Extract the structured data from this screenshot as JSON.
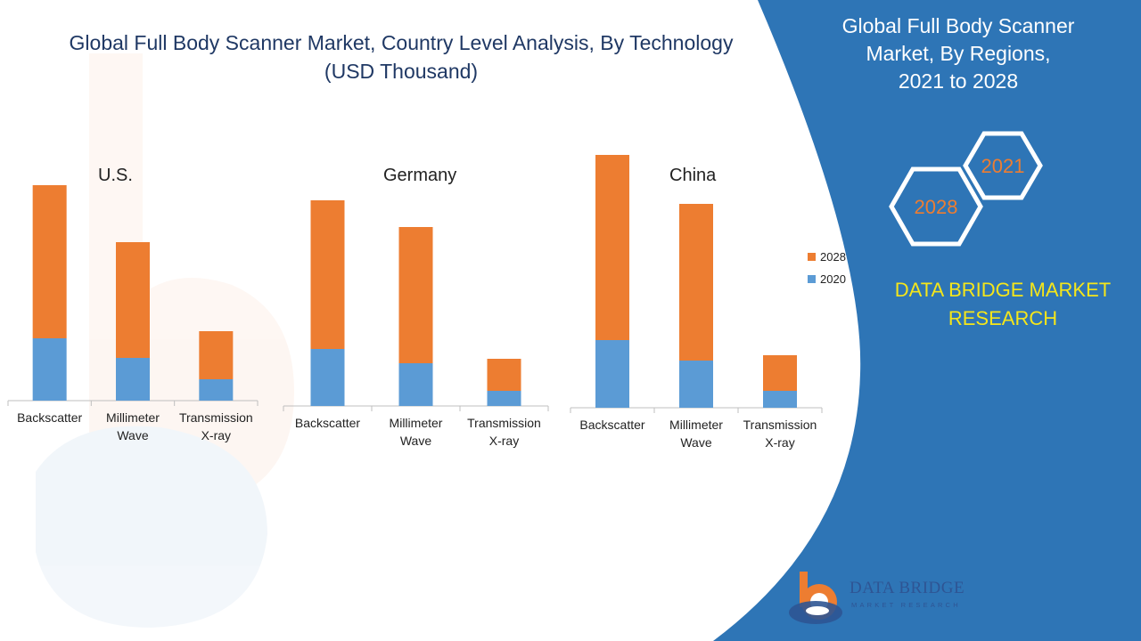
{
  "title_line1": "Global Full Body Scanner Market, Country Level Analysis, By Technology",
  "title_line2": "(USD Thousand)",
  "panel": {
    "title_line1": "Global Full Body Scanner",
    "title_line2": "Market, By Regions,",
    "title_line3": "2021 to 2028",
    "hex_year_a": "2021",
    "hex_year_b": "2028",
    "brand_line1": "DATA BRIDGE MARKET",
    "brand_line2": "RESEARCH"
  },
  "logo": {
    "name": "DATA BRIDGE",
    "tagline": "MARKET RESEARCH"
  },
  "legend": {
    "item_2028": "2028",
    "item_2020": "2020"
  },
  "colors": {
    "series_2028": "#ed7d31",
    "series_2020": "#5b9bd5",
    "title": "#1f3864",
    "panel": "#2e75b6",
    "brand_text": "#f5e61a"
  },
  "chart_data": [
    {
      "type": "bar",
      "stacked": true,
      "title": "U.S.",
      "categories": [
        [
          "Backscatter"
        ],
        [
          "Millimeter",
          "Wave"
        ],
        [
          "Transmission",
          "X-ray"
        ]
      ],
      "series": [
        {
          "name": "2020",
          "values": [
            70,
            48,
            24
          ]
        },
        {
          "name": "2028",
          "values": [
            172,
            130,
            54
          ]
        }
      ]
    },
    {
      "type": "bar",
      "stacked": true,
      "title": "Germany",
      "categories": [
        [
          "Backscatter"
        ],
        [
          "Millimeter",
          "Wave"
        ],
        [
          "Transmission",
          "X-ray"
        ]
      ],
      "series": [
        {
          "name": "2020",
          "values": [
            64,
            48,
            17
          ]
        },
        {
          "name": "2028",
          "values": [
            167,
            153,
            36
          ]
        }
      ]
    },
    {
      "type": "bar",
      "stacked": true,
      "title": "China",
      "categories": [
        [
          "Backscatter"
        ],
        [
          "Millimeter",
          "Wave"
        ],
        [
          "Transmission",
          "X-ray"
        ]
      ],
      "series": [
        {
          "name": "2020",
          "values": [
            76,
            53,
            19
          ]
        },
        {
          "name": "2028",
          "values": [
            208,
            176,
            40
          ]
        }
      ]
    }
  ]
}
